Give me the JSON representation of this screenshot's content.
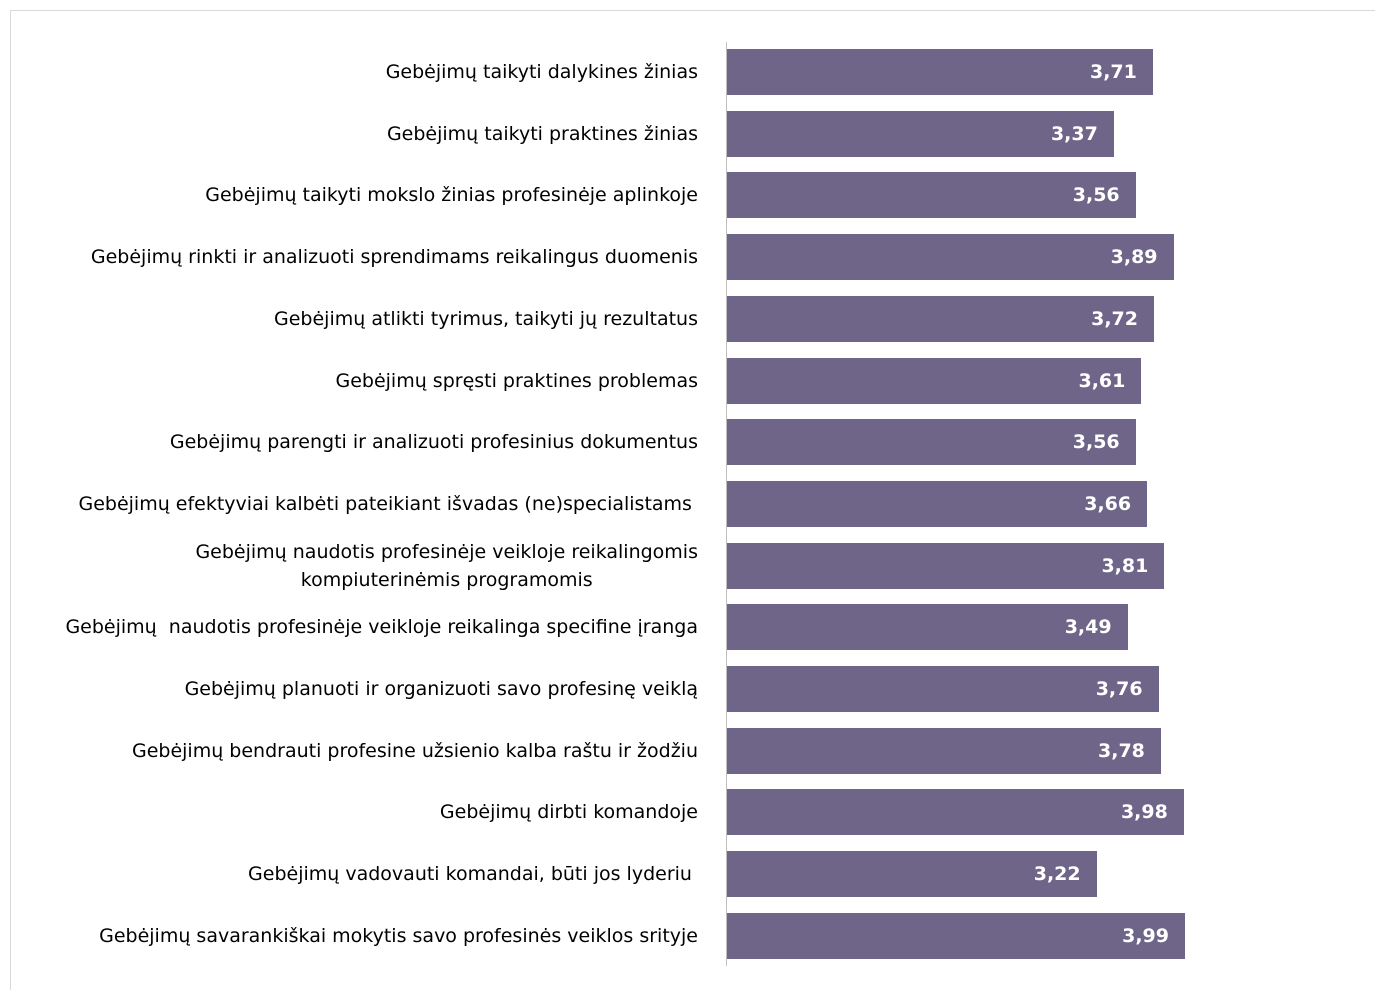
{
  "chart_data": {
    "type": "barh",
    "categories": [
      "Gebėjimų taikyti dalykines žinias",
      "Gebėjimų taikyti praktines žinias",
      "Gebėjimų taikyti mokslo žinias profesinėje aplinkoje",
      "Gebėjimų rinkti ir analizuoti sprendimams reikalingus duomenis",
      "Gebėjimų atlikti tyrimus, taikyti jų rezultatus",
      "Gebėjimų spręsti praktines problemas",
      "Gebėjimų parengti ir analizuoti profesinius dokumentus",
      "Gebėjimų efektyviai kalbėti pateikiant išvadas (ne)specialistams ",
      "Gebėjimų naudotis profesinėje veikloje reikalingomis\nkompiuterinėmis programomis",
      "Gebėjimų  naudotis profesinėje veikloje reikalinga specifine įranga",
      "Gebėjimų planuoti ir organizuoti savo profesinę veiklą",
      "Gebėjimų bendrauti profesine užsienio kalba raštu ir žodžiu",
      "Gebėjimų dirbti komandoje",
      "Gebėjimų vadovauti komandai, būti jos lyderiu ",
      "Gebėjimų savarankiškai mokytis savo profesinės veiklos srityje"
    ],
    "values": [
      3.71,
      3.37,
      3.56,
      3.89,
      3.72,
      3.61,
      3.56,
      3.66,
      3.81,
      3.49,
      3.76,
      3.78,
      3.98,
      3.22,
      3.99
    ],
    "value_labels": [
      "3,71",
      "3,37",
      "3,56",
      "3,89",
      "3,72",
      "3,61",
      "3,56",
      "3,66",
      "3,81",
      "3,49",
      "3,76",
      "3,78",
      "3,98",
      "3,22",
      "3,99"
    ],
    "color": "#6e6589"
  }
}
